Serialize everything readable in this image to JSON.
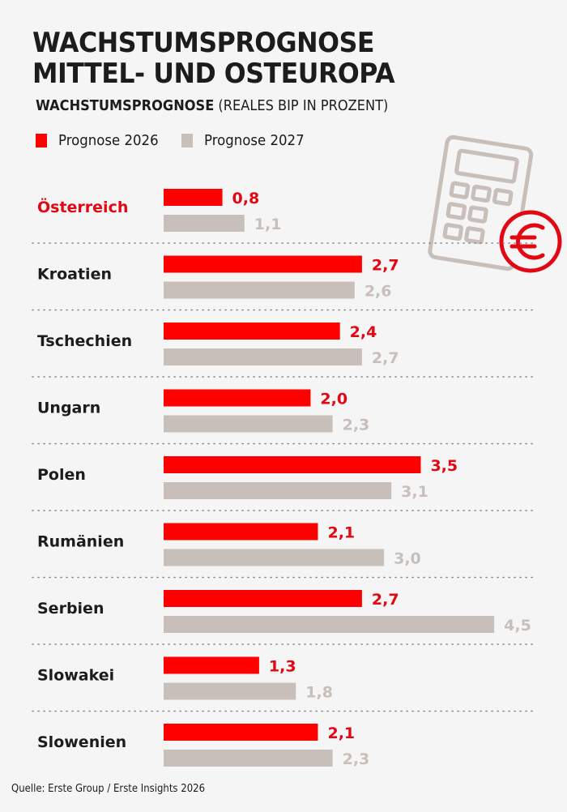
{
  "header": {
    "title_line1": "WACHSTUMSPROGNOSE",
    "title_line2": "MITTEL- UND OSTEUROPA",
    "subtitle_bold": "WACHSTUMSPROGNOSE",
    "subtitle_rest": " (REALES BIP IN PROZENT)"
  },
  "icon": {
    "name": "calculator-euro-icon",
    "stroke": "#c8bfbb",
    "accent": "#e30613"
  },
  "colors": {
    "series_2026": "#ff0000",
    "series_2027": "#c8bfbb",
    "label_2026": "#e30613",
    "label_2027": "#c8bfbb",
    "highlight_category": "#e30613"
  },
  "source": "Quelle: Erste Group / Erste Insights 2026",
  "chart_data": {
    "type": "bar",
    "orientation": "horizontal",
    "title": "WACHSTUMSPROGNOSE MITTEL- UND OSTEUROPA",
    "subtitle": "WACHSTUMSPROGNOSE (REALES BIP IN PROZENT)",
    "xlabel": "",
    "ylabel": "",
    "unit": "%",
    "decimal_separator": ",",
    "xlim": [
      0,
      4.5
    ],
    "grid": false,
    "legend_position": "top-left",
    "highlighted_category": "Österreich",
    "categories": [
      "Österreich",
      "Kroatien",
      "Tschechien",
      "Ungarn",
      "Polen",
      "Rumänien",
      "Serbien",
      "Slowakei",
      "Slowenien"
    ],
    "series": [
      {
        "name": "Prognose 2026",
        "values": [
          0.8,
          2.7,
          2.4,
          2.0,
          3.5,
          2.1,
          2.7,
          1.3,
          2.1
        ]
      },
      {
        "name": "Prognose 2027",
        "values": [
          1.1,
          2.6,
          2.7,
          2.3,
          3.1,
          3.0,
          4.5,
          1.8,
          2.3
        ]
      }
    ]
  }
}
